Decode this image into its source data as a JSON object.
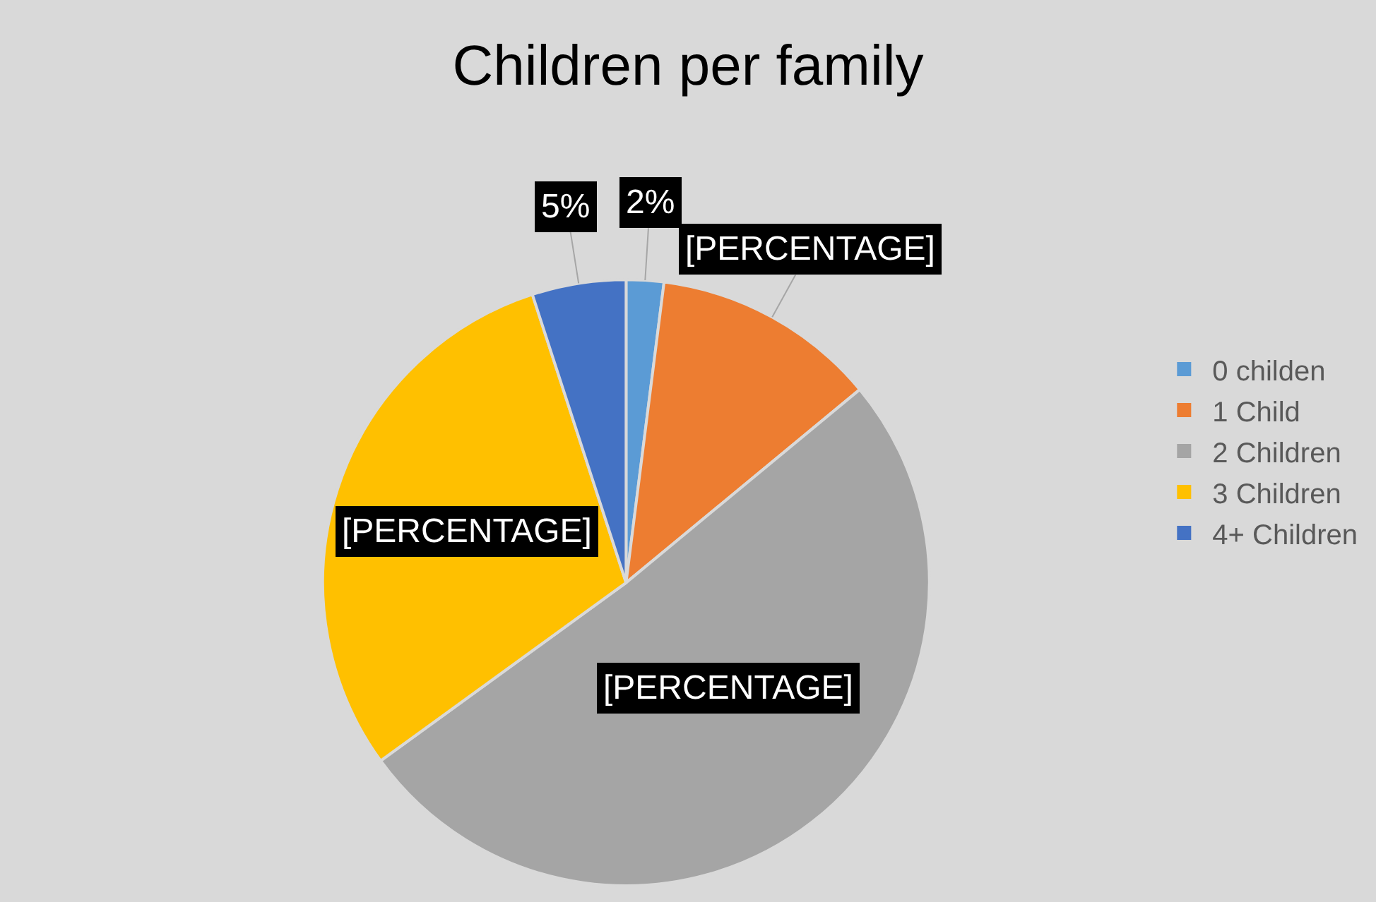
{
  "chart_data": {
    "type": "pie",
    "title": "Children per family",
    "categories": [
      "0 childen",
      "1 Child",
      "2 Children",
      "3 Children",
      "4+ Children"
    ],
    "values": [
      2,
      12,
      51,
      30,
      5
    ],
    "value_labels": [
      "2%",
      "[PERCENTAGE]",
      "[PERCENTAGE]",
      "[PERCENTAGE]",
      "5%"
    ],
    "colors": [
      "#5b9bd5",
      "#ed7d31",
      "#a5a5a5",
      "#ffc000",
      "#4472c4"
    ],
    "legend": "right"
  }
}
